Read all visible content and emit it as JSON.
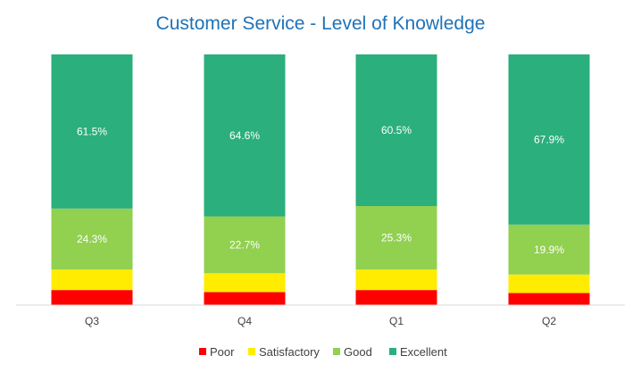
{
  "chart_data": {
    "type": "bar",
    "stacked": true,
    "normalized": true,
    "title": "Customer Service - Level of Knowledge",
    "xlabel": "",
    "ylabel": "",
    "ylim": [
      0,
      100
    ],
    "grid": false,
    "legend_position": "bottom",
    "categories": [
      "Q3",
      "Q4",
      "Q1",
      "Q2"
    ],
    "series": [
      {
        "name": "Poor",
        "color": "#ff0000",
        "values": [
          6.0,
          5.2,
          6.0,
          4.8
        ],
        "labels": [
          "",
          "",
          "",
          ""
        ]
      },
      {
        "name": "Satisfactory",
        "color": "#ffec00",
        "values": [
          8.2,
          7.5,
          8.2,
          7.4
        ],
        "labels": [
          "",
          "",
          "",
          ""
        ]
      },
      {
        "name": "Good",
        "color": "#92d050",
        "values": [
          24.3,
          22.7,
          25.3,
          19.9
        ],
        "labels": [
          "24.3%",
          "22.7%",
          "25.3%",
          "19.9%"
        ]
      },
      {
        "name": "Excellent",
        "color": "#2aaf7d",
        "values": [
          61.5,
          64.6,
          60.5,
          67.9
        ],
        "labels": [
          "61.5%",
          "64.6%",
          "60.5%",
          "67.9%"
        ]
      }
    ]
  }
}
